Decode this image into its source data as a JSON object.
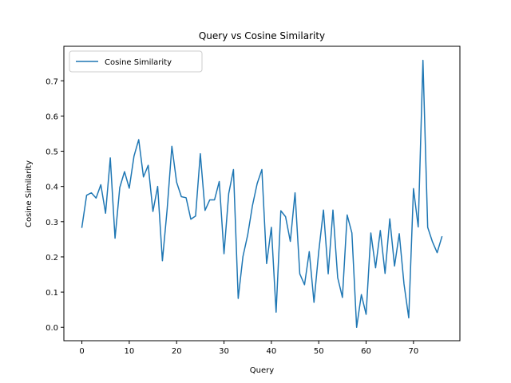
{
  "chart_data": {
    "type": "line",
    "title": "Query vs Cosine Similarity",
    "xlabel": "Query",
    "ylabel": "Cosine Similarity",
    "xlim": [
      -3.8,
      79.8
    ],
    "ylim": [
      -0.038,
      0.798
    ],
    "xticks": [
      0,
      10,
      20,
      30,
      40,
      50,
      60,
      70
    ],
    "yticks": [
      0.0,
      0.1,
      0.2,
      0.3,
      0.4,
      0.5,
      0.6,
      0.7
    ],
    "ytick_labels": [
      "0.0",
      "0.1",
      "0.2",
      "0.3",
      "0.4",
      "0.5",
      "0.6",
      "0.7"
    ],
    "grid": false,
    "legend": {
      "position": "upper-left",
      "entries": [
        "Cosine Similarity"
      ]
    },
    "series": [
      {
        "name": "Cosine Similarity",
        "color": "#1f77b4",
        "x": [
          0,
          1,
          2,
          3,
          4,
          5,
          6,
          7,
          8,
          9,
          10,
          11,
          12,
          13,
          14,
          15,
          16,
          17,
          18,
          19,
          20,
          21,
          22,
          23,
          24,
          25,
          26,
          27,
          28,
          29,
          30,
          31,
          32,
          33,
          34,
          35,
          36,
          37,
          38,
          39,
          40,
          41,
          42,
          43,
          44,
          45,
          46,
          47,
          48,
          49,
          50,
          51,
          52,
          53,
          54,
          55,
          56,
          57,
          58,
          59,
          60,
          61,
          62,
          63,
          64,
          65,
          66,
          67,
          68,
          69,
          70,
          71,
          72,
          73,
          74,
          75,
          76
        ],
        "y": [
          0.284,
          0.375,
          0.382,
          0.367,
          0.405,
          0.324,
          0.481,
          0.253,
          0.397,
          0.442,
          0.395,
          0.486,
          0.533,
          0.427,
          0.46,
          0.329,
          0.4,
          0.189,
          0.335,
          0.514,
          0.412,
          0.371,
          0.368,
          0.307,
          0.316,
          0.493,
          0.332,
          0.362,
          0.362,
          0.414,
          0.209,
          0.38,
          0.448,
          0.082,
          0.201,
          0.262,
          0.345,
          0.408,
          0.448,
          0.181,
          0.284,
          0.043,
          0.331,
          0.314,
          0.244,
          0.382,
          0.152,
          0.121,
          0.215,
          0.071,
          0.215,
          0.333,
          0.152,
          0.333,
          0.141,
          0.085,
          0.319,
          0.268,
          0.0,
          0.093,
          0.037,
          0.268,
          0.169,
          0.275,
          0.153,
          0.308,
          0.174,
          0.266,
          0.123,
          0.027,
          0.394,
          0.285,
          0.758,
          0.284,
          0.243,
          0.212,
          0.257
        ]
      }
    ]
  }
}
